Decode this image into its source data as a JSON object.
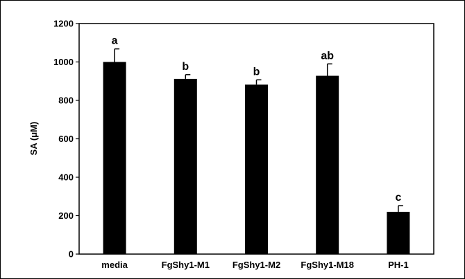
{
  "chart_data": {
    "type": "bar",
    "categories": [
      "media",
      "FgShy1-M1",
      "FgShy1-M2",
      "FgShy1-M18",
      "PH-1"
    ],
    "values": [
      1000,
      912,
      882,
      928,
      220
    ],
    "errors": [
      68,
      22,
      25,
      62,
      32
    ],
    "significance": [
      "a",
      "b",
      "b",
      "ab",
      "c"
    ],
    "title": "",
    "xlabel": "",
    "ylabel": "SA (μM)",
    "ylim": [
      0,
      1200
    ],
    "yticks": [
      "0",
      "200",
      "400",
      "600",
      "800",
      "1000",
      "1200"
    ],
    "grid": false,
    "legend": "none",
    "bar_color": "#000000"
  }
}
